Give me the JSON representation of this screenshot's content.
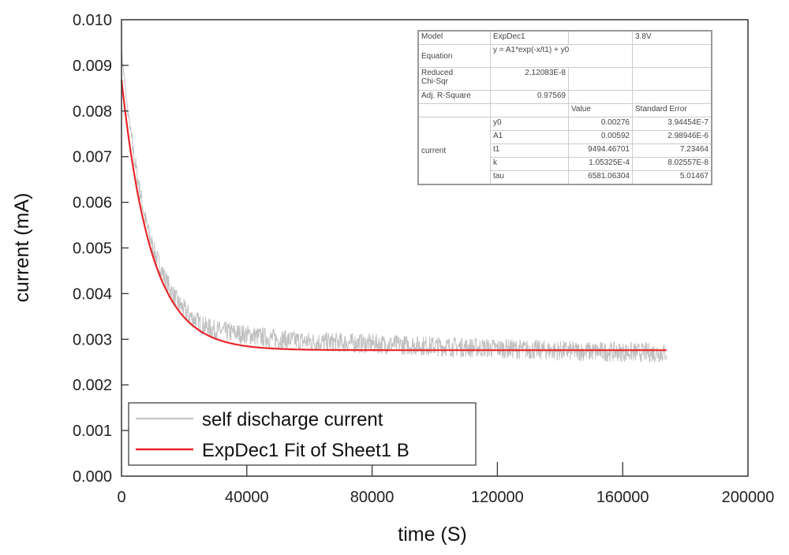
{
  "chart_data": {
    "type": "line",
    "xlabel": "time (S)",
    "ylabel": "current (mA)",
    "xlim": [
      0,
      200000
    ],
    "ylim": [
      0,
      0.01
    ],
    "xticks": [
      "0",
      "40000",
      "80000",
      "120000",
      "160000",
      "200000"
    ],
    "yticks": [
      "0.000",
      "0.001",
      "0.002",
      "0.003",
      "0.004",
      "0.005",
      "0.006",
      "0.007",
      "0.008",
      "0.009",
      "0.010"
    ],
    "grid": false,
    "legend_position": "bottom-left",
    "series": [
      {
        "name": "self discharge current",
        "color": "#c0c0c0",
        "x": [
          0,
          2000,
          4000,
          6000,
          8000,
          10000,
          14000,
          18000,
          22000,
          26000,
          30000,
          40000,
          50000,
          60000,
          80000,
          100000,
          120000,
          140000,
          160000,
          174000
        ],
        "y": [
          0.0093,
          0.008,
          0.007,
          0.0062,
          0.0055,
          0.005,
          0.0043,
          0.0038,
          0.0035,
          0.0033,
          0.0032,
          0.0031,
          0.003,
          0.00295,
          0.0029,
          0.00285,
          0.0028,
          0.00275,
          0.00272,
          0.0027
        ],
        "noise_amplitude": 0.00022
      },
      {
        "name": "ExpDec1 Fit of Sheet1 B",
        "color": "#e8262a",
        "model": "ExpDec1",
        "params": {
          "y0": 0.00276,
          "A1": 0.00592,
          "t1": 9494.46701
        },
        "x_range": [
          0,
          174000
        ]
      }
    ],
    "fit_table": {
      "model_label": "Model",
      "model": "ExpDec1",
      "voltage": "3.8V",
      "equation_label": "Equation",
      "equation": "y = A1*exp(-x/t1) + y0",
      "chisq_label_1": "Reduced",
      "chisq_label_2": "Chi-Sqr",
      "chisq": "2.12083E-8",
      "r2_label": "Adj. R-Square",
      "r2": "0.97569",
      "value_header": "Value",
      "error_header": "Standard Error",
      "group": "current",
      "rows": [
        {
          "param": "y0",
          "value": "0.00276",
          "error": "3.94454E-7"
        },
        {
          "param": "A1",
          "value": "0.00592",
          "error": "2.98946E-6"
        },
        {
          "param": "t1",
          "value": "9494.46701",
          "error": "7.23464"
        },
        {
          "param": "k",
          "value": "1.05325E-4",
          "error": "8.02557E-8"
        },
        {
          "param": "tau",
          "value": "6581.06304",
          "error": "5.01467"
        }
      ]
    }
  }
}
